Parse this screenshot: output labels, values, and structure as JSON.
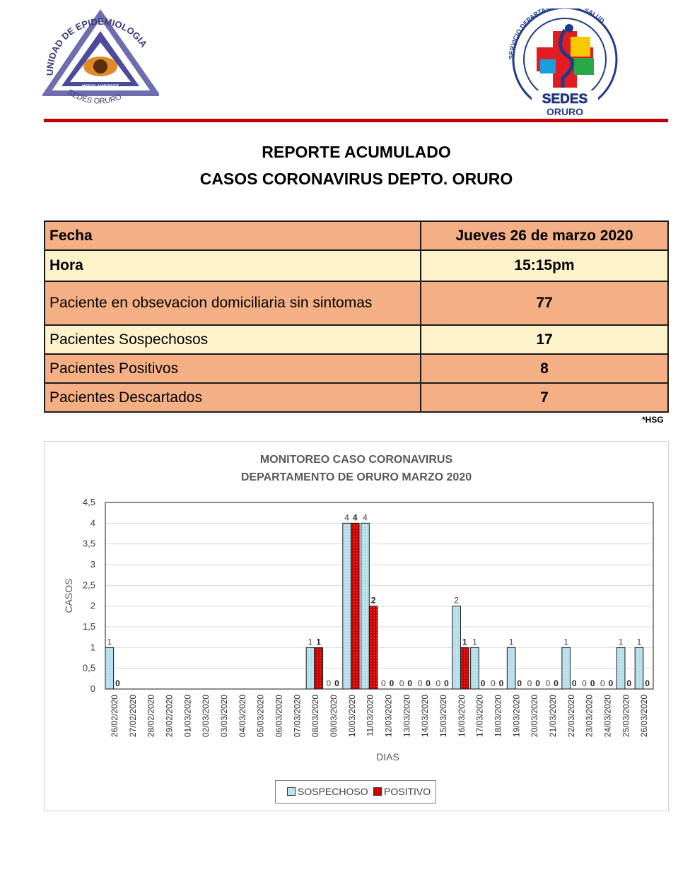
{
  "header": {
    "left_logo": {
      "icon": "epidemiology-unit-logo",
      "text_top": "UNIDAD DE EPIDEMIOLOGIA",
      "text_bottom": "SEDES ORURO",
      "text_band": "MEDIO AMBIENTE"
    },
    "right_logo": {
      "icon": "sedes-oruro-logo",
      "text_ring": "SERVICIO DEPARTAMENTAL DE SALUD",
      "text_name": "SEDES",
      "text_city": "ORURO"
    },
    "rule_color": "#c00000"
  },
  "report": {
    "title_line1": "REPORTE ACUMULADO",
    "title_line2": "CASOS CORONAVIRUS DEPTO. ORURO"
  },
  "summary_table": [
    {
      "label": "Fecha",
      "value": "Jueves 26 de marzo 2020"
    },
    {
      "label": "Hora",
      "value": "15:15pm"
    },
    {
      "label": "Paciente en obsevacion domiciliaria sin sintomas",
      "value": "77"
    },
    {
      "label": "Pacientes Sospechosos",
      "value": "17"
    },
    {
      "label": "Pacientes Positivos",
      "value": "8"
    },
    {
      "label": "Pacientes Descartados",
      "value": "7"
    }
  ],
  "footnote": "*HSG",
  "colors": {
    "table_orange": "#f4b084",
    "table_cream": "#fef2cb",
    "sospechoso": "#bde3ef",
    "positivo": "#cc0000"
  },
  "chart_data": {
    "type": "bar",
    "title": "MONITOREO CASO CORONAVIRUS",
    "subtitle": "DEPARTAMENTO DE ORURO MARZO 2020",
    "xlabel": "DIAS",
    "ylabel": "CASOS",
    "ylim": [
      0,
      4.5
    ],
    "yticks": [
      "0",
      "0,5",
      "1",
      "1,5",
      "2",
      "2,5",
      "3",
      "3,5",
      "4",
      "4,5"
    ],
    "grid": true,
    "legend_position": "bottom",
    "categories": [
      "26/02/2020",
      "27/02/2020",
      "28/02/2020",
      "29/02/2020",
      "01/03/2020",
      "02/03/2020",
      "03/03/2020",
      "04/03/2020",
      "05/03/2020",
      "06/03/2020",
      "07/03/2020",
      "08/03/2020",
      "09/03/2020",
      "10/03/2020",
      "11/03/2020",
      "12/03/2020",
      "13/03/2020",
      "14/03/2020",
      "15/03/2020",
      "16/03/2020",
      "17/03/2020",
      "18/03/2020",
      "19/03/2020",
      "20/03/2020",
      "21/03/2020",
      "22/03/2020",
      "23/03/2020",
      "24/03/2020",
      "25/03/2020",
      "26/03/2020"
    ],
    "series": [
      {
        "name": "SOSPECHOSO",
        "values": [
          1,
          null,
          null,
          null,
          null,
          null,
          null,
          null,
          null,
          null,
          null,
          1,
          0,
          4,
          4,
          0,
          0,
          0,
          0,
          2,
          1,
          0,
          1,
          0,
          0,
          1,
          0,
          0,
          1,
          1
        ],
        "labels": [
          "1",
          "",
          "",
          "",
          "",
          "",
          "",
          "",
          "",
          "",
          "",
          "1",
          "0",
          "4",
          "4",
          "0",
          "0",
          "0",
          "0",
          "2",
          "1",
          "0",
          "1",
          "0",
          "0",
          "1",
          "0",
          "0",
          "1",
          "1"
        ]
      },
      {
        "name": "POSITIVO",
        "values": [
          0,
          null,
          null,
          null,
          null,
          null,
          null,
          null,
          null,
          null,
          null,
          1,
          0,
          4,
          2,
          0,
          0,
          0,
          0,
          1,
          0,
          0,
          0,
          0,
          0,
          0,
          0,
          0,
          0,
          0
        ],
        "labels": [
          "0",
          "",
          "",
          "",
          "",
          "",
          "",
          "",
          "",
          "",
          "",
          "1",
          "0",
          "4",
          "2",
          "0",
          "0",
          "0",
          "0",
          "1",
          "0",
          "0",
          "0",
          "0",
          "0",
          "0",
          "0",
          "0",
          "0",
          "0"
        ]
      }
    ]
  }
}
